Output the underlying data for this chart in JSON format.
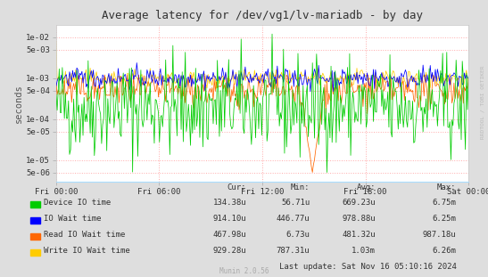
{
  "title": "Average latency for /dev/vg1/lv-mariadb - by day",
  "ylabel": "seconds",
  "bg_color": "#DEDEDE",
  "plot_bg_color": "#FFFFFF",
  "grid_color": "#FFAAAA",
  "right_label": "RRDTOOL / TOBI OETIKER",
  "watermark": "Munin 2.0.56",
  "xticklabels": [
    "Fri 00:00",
    "Fri 06:00",
    "Fri 12:00",
    "Fri 18:00",
    "Sat 00:00"
  ],
  "yticks": [
    5e-06,
    1e-05,
    5e-05,
    0.0001,
    0.0005,
    0.001,
    0.005,
    0.01
  ],
  "yticklabels": [
    "5e-06",
    "1e-05",
    "5e-05",
    "1e-04",
    "5e-04",
    "1e-03",
    "5e-03",
    "1e-02"
  ],
  "ylim_low": 3e-06,
  "ylim_high": 0.02,
  "legend_labels": [
    "Device IO time",
    "IO Wait time",
    "Read IO Wait time",
    "Write IO Wait time"
  ],
  "legend_colors": [
    "#00CC00",
    "#0000FF",
    "#FF6600",
    "#FFCC00"
  ],
  "table_header": [
    "Cur:",
    "Min:",
    "Avg:",
    "Max:"
  ],
  "table_data": [
    [
      "134.38u",
      "56.71u",
      "669.23u",
      "6.75m"
    ],
    [
      "914.10u",
      "446.77u",
      "978.88u",
      "6.25m"
    ],
    [
      "467.98u",
      "6.73u",
      "481.32u",
      "987.18u"
    ],
    [
      "929.28u",
      "787.31u",
      "1.03m",
      "6.26m"
    ]
  ],
  "last_update": "Last update: Sat Nov 16 05:10:16 2024",
  "n_points": 400,
  "seed": 42,
  "base_green": 0.0002,
  "base_blue": 0.001,
  "base_orange": 0.0005,
  "base_yellow": 0.001
}
